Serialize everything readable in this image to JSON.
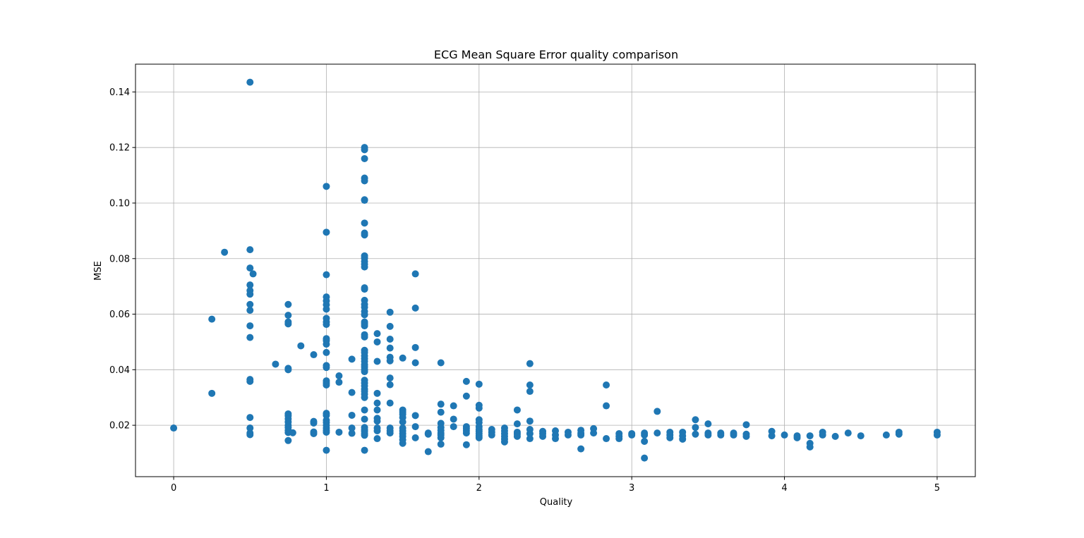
{
  "chart_data": {
    "type": "scatter",
    "title": "ECG Mean Square Error quality comparison",
    "xlabel": "Quality",
    "ylabel": "MSE",
    "xlim": [
      -0.25,
      5.25
    ],
    "ylim": [
      0.0015,
      0.15
    ],
    "xticks": [
      0,
      1,
      2,
      3,
      4,
      5
    ],
    "yticks": [
      0.02,
      0.04,
      0.06,
      0.08,
      0.1,
      0.12,
      0.14
    ],
    "xtick_labels": [
      "0",
      "1",
      "2",
      "3",
      "4",
      "5"
    ],
    "ytick_labels": [
      "0.02",
      "0.04",
      "0.06",
      "0.08",
      "0.10",
      "0.12",
      "0.14"
    ],
    "grid": true,
    "marker_color": "#1f77b4",
    "points": [
      [
        0,
        0.019
      ],
      [
        0.25,
        0.0582
      ],
      [
        0.25,
        0.0315
      ],
      [
        0.333,
        0.0823
      ],
      [
        0.5,
        0.1435
      ],
      [
        0.5,
        0.0832
      ],
      [
        0.5,
        0.0766
      ],
      [
        0.5,
        0.0705
      ],
      [
        0.5,
        0.0685
      ],
      [
        0.5,
        0.0672
      ],
      [
        0.5,
        0.0635
      ],
      [
        0.5,
        0.0614
      ],
      [
        0.5,
        0.0558
      ],
      [
        0.5,
        0.0516
      ],
      [
        0.5,
        0.0365
      ],
      [
        0.5,
        0.0358
      ],
      [
        0.5,
        0.0228
      ],
      [
        0.5,
        0.019
      ],
      [
        0.5,
        0.0172
      ],
      [
        0.5,
        0.0166
      ],
      [
        0.52,
        0.0745
      ],
      [
        0.667,
        0.042
      ],
      [
        0.75,
        0.0635
      ],
      [
        0.75,
        0.0596
      ],
      [
        0.75,
        0.0572
      ],
      [
        0.75,
        0.0565
      ],
      [
        0.75,
        0.0405
      ],
      [
        0.75,
        0.04
      ],
      [
        0.75,
        0.0241
      ],
      [
        0.75,
        0.0234
      ],
      [
        0.75,
        0.0223
      ],
      [
        0.75,
        0.0212
      ],
      [
        0.75,
        0.02
      ],
      [
        0.75,
        0.0192
      ],
      [
        0.75,
        0.0182
      ],
      [
        0.75,
        0.0174
      ],
      [
        0.75,
        0.0145
      ],
      [
        0.78,
        0.0173
      ],
      [
        0.833,
        0.0486
      ],
      [
        0.917,
        0.0454
      ],
      [
        0.917,
        0.0214
      ],
      [
        0.917,
        0.0208
      ],
      [
        0.917,
        0.0176
      ],
      [
        0.917,
        0.017
      ],
      [
        1,
        0.106
      ],
      [
        1,
        0.0895
      ],
      [
        1,
        0.0742
      ],
      [
        1,
        0.0662
      ],
      [
        1,
        0.0648
      ],
      [
        1,
        0.0634
      ],
      [
        1,
        0.0618
      ],
      [
        1,
        0.0585
      ],
      [
        1,
        0.0572
      ],
      [
        1,
        0.0563
      ],
      [
        1,
        0.0512
      ],
      [
        1,
        0.0505
      ],
      [
        1,
        0.0492
      ],
      [
        1,
        0.0462
      ],
      [
        1,
        0.0415
      ],
      [
        1,
        0.0408
      ],
      [
        1,
        0.036
      ],
      [
        1,
        0.0352
      ],
      [
        1,
        0.0345
      ],
      [
        1,
        0.0243
      ],
      [
        1,
        0.0236
      ],
      [
        1,
        0.0218
      ],
      [
        1,
        0.021
      ],
      [
        1,
        0.02
      ],
      [
        1,
        0.019
      ],
      [
        1,
        0.0182
      ],
      [
        1,
        0.0175
      ],
      [
        1,
        0.011
      ],
      [
        1.083,
        0.0378
      ],
      [
        1.083,
        0.0355
      ],
      [
        1.083,
        0.0175
      ],
      [
        1.167,
        0.0438
      ],
      [
        1.167,
        0.0318
      ],
      [
        1.167,
        0.0236
      ],
      [
        1.167,
        0.019
      ],
      [
        1.167,
        0.0171
      ],
      [
        1.25,
        0.12
      ],
      [
        1.25,
        0.1192
      ],
      [
        1.25,
        0.116
      ],
      [
        1.25,
        0.109
      ],
      [
        1.25,
        0.108
      ],
      [
        1.25,
        0.1012
      ],
      [
        1.25,
        0.101
      ],
      [
        1.25,
        0.0928
      ],
      [
        1.25,
        0.0892
      ],
      [
        1.25,
        0.0885
      ],
      [
        1.25,
        0.081
      ],
      [
        1.25,
        0.0802
      ],
      [
        1.25,
        0.079
      ],
      [
        1.25,
        0.078
      ],
      [
        1.25,
        0.077
      ],
      [
        1.25,
        0.0695
      ],
      [
        1.25,
        0.069
      ],
      [
        1.25,
        0.065
      ],
      [
        1.25,
        0.0635
      ],
      [
        1.25,
        0.0625
      ],
      [
        1.25,
        0.061
      ],
      [
        1.25,
        0.0598
      ],
      [
        1.25,
        0.0572
      ],
      [
        1.25,
        0.0565
      ],
      [
        1.25,
        0.0558
      ],
      [
        1.25,
        0.0526
      ],
      [
        1.25,
        0.0518
      ],
      [
        1.25,
        0.047
      ],
      [
        1.25,
        0.0462
      ],
      [
        1.25,
        0.045
      ],
      [
        1.25,
        0.044
      ],
      [
        1.25,
        0.043
      ],
      [
        1.25,
        0.0418
      ],
      [
        1.25,
        0.041
      ],
      [
        1.25,
        0.04
      ],
      [
        1.25,
        0.0393
      ],
      [
        1.25,
        0.0362
      ],
      [
        1.25,
        0.0352
      ],
      [
        1.25,
        0.0342
      ],
      [
        1.25,
        0.033
      ],
      [
        1.25,
        0.0322
      ],
      [
        1.25,
        0.0312
      ],
      [
        1.25,
        0.03
      ],
      [
        1.25,
        0.0255
      ],
      [
        1.25,
        0.0222
      ],
      [
        1.25,
        0.0192
      ],
      [
        1.25,
        0.0184
      ],
      [
        1.25,
        0.0178
      ],
      [
        1.25,
        0.017
      ],
      [
        1.25,
        0.0164
      ],
      [
        1.25,
        0.011
      ],
      [
        1.333,
        0.053
      ],
      [
        1.333,
        0.05
      ],
      [
        1.333,
        0.043
      ],
      [
        1.333,
        0.0315
      ],
      [
        1.333,
        0.028
      ],
      [
        1.333,
        0.0255
      ],
      [
        1.333,
        0.0225
      ],
      [
        1.333,
        0.0215
      ],
      [
        1.333,
        0.019
      ],
      [
        1.333,
        0.018
      ],
      [
        1.333,
        0.0152
      ],
      [
        1.417,
        0.0607
      ],
      [
        1.417,
        0.0556
      ],
      [
        1.417,
        0.051
      ],
      [
        1.417,
        0.0478
      ],
      [
        1.417,
        0.0445
      ],
      [
        1.417,
        0.0432
      ],
      [
        1.417,
        0.037
      ],
      [
        1.417,
        0.0346
      ],
      [
        1.417,
        0.028
      ],
      [
        1.417,
        0.019
      ],
      [
        1.417,
        0.018
      ],
      [
        1.417,
        0.0172
      ],
      [
        1.5,
        0.0442
      ],
      [
        1.5,
        0.0255
      ],
      [
        1.5,
        0.0248
      ],
      [
        1.5,
        0.024
      ],
      [
        1.5,
        0.0228
      ],
      [
        1.5,
        0.0212
      ],
      [
        1.5,
        0.019
      ],
      [
        1.5,
        0.018
      ],
      [
        1.5,
        0.017
      ],
      [
        1.5,
        0.016
      ],
      [
        1.5,
        0.0148
      ],
      [
        1.5,
        0.0135
      ],
      [
        1.583,
        0.0745
      ],
      [
        1.583,
        0.0622
      ],
      [
        1.583,
        0.048
      ],
      [
        1.583,
        0.0425
      ],
      [
        1.583,
        0.0235
      ],
      [
        1.583,
        0.0195
      ],
      [
        1.583,
        0.0155
      ],
      [
        1.667,
        0.0172
      ],
      [
        1.667,
        0.0168
      ],
      [
        1.667,
        0.0105
      ],
      [
        1.75,
        0.0425
      ],
      [
        1.75,
        0.0276
      ],
      [
        1.75,
        0.0247
      ],
      [
        1.75,
        0.0207
      ],
      [
        1.75,
        0.0192
      ],
      [
        1.75,
        0.0182
      ],
      [
        1.75,
        0.0172
      ],
      [
        1.75,
        0.0165
      ],
      [
        1.75,
        0.0155
      ],
      [
        1.75,
        0.0132
      ],
      [
        1.833,
        0.027
      ],
      [
        1.833,
        0.0222
      ],
      [
        1.833,
        0.0195
      ],
      [
        1.917,
        0.0358
      ],
      [
        1.917,
        0.0305
      ],
      [
        1.917,
        0.0195
      ],
      [
        1.917,
        0.0188
      ],
      [
        1.917,
        0.018
      ],
      [
        1.917,
        0.0172
      ],
      [
        1.917,
        0.013
      ],
      [
        2,
        0.0348
      ],
      [
        2,
        0.0272
      ],
      [
        2,
        0.0262
      ],
      [
        2,
        0.022
      ],
      [
        2,
        0.021
      ],
      [
        2,
        0.0195
      ],
      [
        2,
        0.0185
      ],
      [
        2,
        0.0178
      ],
      [
        2,
        0.017
      ],
      [
        2,
        0.0162
      ],
      [
        2,
        0.0155
      ],
      [
        2.083,
        0.0185
      ],
      [
        2.083,
        0.0175
      ],
      [
        2.083,
        0.0165
      ],
      [
        2.167,
        0.019
      ],
      [
        2.167,
        0.018
      ],
      [
        2.167,
        0.017
      ],
      [
        2.167,
        0.016
      ],
      [
        2.167,
        0.015
      ],
      [
        2.167,
        0.014
      ],
      [
        2.25,
        0.0255
      ],
      [
        2.25,
        0.0205
      ],
      [
        2.25,
        0.0175
      ],
      [
        2.25,
        0.0168
      ],
      [
        2.25,
        0.016
      ],
      [
        2.333,
        0.0422
      ],
      [
        2.333,
        0.0345
      ],
      [
        2.333,
        0.0322
      ],
      [
        2.333,
        0.0215
      ],
      [
        2.333,
        0.0185
      ],
      [
        2.333,
        0.017
      ],
      [
        2.333,
        0.0152
      ],
      [
        2.417,
        0.0178
      ],
      [
        2.417,
        0.017
      ],
      [
        2.417,
        0.016
      ],
      [
        2.5,
        0.018
      ],
      [
        2.5,
        0.0165
      ],
      [
        2.5,
        0.0152
      ],
      [
        2.583,
        0.0175
      ],
      [
        2.583,
        0.0165
      ],
      [
        2.667,
        0.0182
      ],
      [
        2.667,
        0.0172
      ],
      [
        2.667,
        0.0165
      ],
      [
        2.667,
        0.0115
      ],
      [
        2.75,
        0.0188
      ],
      [
        2.75,
        0.0172
      ],
      [
        2.833,
        0.0345
      ],
      [
        2.833,
        0.027
      ],
      [
        2.833,
        0.0152
      ],
      [
        2.917,
        0.017
      ],
      [
        2.917,
        0.016
      ],
      [
        2.917,
        0.0152
      ],
      [
        3,
        0.017
      ],
      [
        3,
        0.0165
      ],
      [
        3.083,
        0.0172
      ],
      [
        3.083,
        0.0165
      ],
      [
        3.083,
        0.0142
      ],
      [
        3.083,
        0.0082
      ],
      [
        3.167,
        0.025
      ],
      [
        3.167,
        0.0172
      ],
      [
        3.25,
        0.0175
      ],
      [
        3.25,
        0.0165
      ],
      [
        3.25,
        0.0155
      ],
      [
        3.333,
        0.0175
      ],
      [
        3.333,
        0.0162
      ],
      [
        3.333,
        0.015
      ],
      [
        3.417,
        0.022
      ],
      [
        3.417,
        0.0192
      ],
      [
        3.417,
        0.0168
      ],
      [
        3.5,
        0.0205
      ],
      [
        3.5,
        0.0172
      ],
      [
        3.5,
        0.0165
      ],
      [
        3.583,
        0.0172
      ],
      [
        3.583,
        0.0165
      ],
      [
        3.667,
        0.0172
      ],
      [
        3.667,
        0.0165
      ],
      [
        3.75,
        0.0202
      ],
      [
        3.75,
        0.0168
      ],
      [
        3.75,
        0.016
      ],
      [
        3.917,
        0.0178
      ],
      [
        3.917,
        0.0162
      ],
      [
        4,
        0.0165
      ],
      [
        4.083,
        0.0162
      ],
      [
        4.083,
        0.0155
      ],
      [
        4.167,
        0.0162
      ],
      [
        4.167,
        0.0135
      ],
      [
        4.167,
        0.0122
      ],
      [
        4.25,
        0.0175
      ],
      [
        4.25,
        0.0165
      ],
      [
        4.333,
        0.016
      ],
      [
        4.417,
        0.0172
      ],
      [
        4.5,
        0.0162
      ],
      [
        4.667,
        0.0165
      ],
      [
        4.75,
        0.0175
      ],
      [
        4.75,
        0.0168
      ],
      [
        5,
        0.0175
      ],
      [
        5,
        0.0165
      ]
    ]
  }
}
